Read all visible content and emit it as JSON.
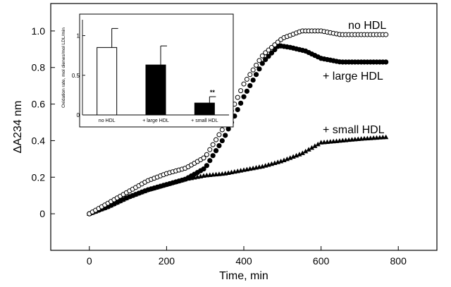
{
  "chart_data": [
    {
      "type": "scatter",
      "xlabel": "Time, min",
      "ylabel": "ΔA234 nm",
      "xlim": [
        -100,
        900
      ],
      "ylim": [
        -0.2,
        1.15
      ],
      "xticks": [
        0,
        200,
        400,
        600,
        800
      ],
      "yticks": [
        0,
        0.2,
        0.4,
        0.6,
        0.8,
        1.0
      ],
      "xtick_labels": [
        "0",
        "200",
        "400",
        "600",
        "800"
      ],
      "ytick_labels": [
        "0",
        "0.2",
        "0.4",
        "0.6",
        "0.8",
        "1.0"
      ],
      "grid": false,
      "series": [
        {
          "name": "no HDL",
          "marker": "open-circle",
          "x": [
            0,
            50,
            100,
            150,
            200,
            250,
            300,
            350,
            400,
            450,
            500,
            550,
            600,
            650,
            700,
            770
          ],
          "y": [
            0,
            0.06,
            0.12,
            0.18,
            0.22,
            0.25,
            0.31,
            0.48,
            0.71,
            0.87,
            0.96,
            1.0,
            1.0,
            0.98,
            0.98,
            0.98
          ]
        },
        {
          "name": "+ large HDL",
          "marker": "filled-circle",
          "x": [
            0,
            50,
            100,
            150,
            200,
            250,
            300,
            350,
            400,
            450,
            490,
            520,
            560,
            600,
            650,
            700,
            770
          ],
          "y": [
            0,
            0.04,
            0.09,
            0.13,
            0.16,
            0.19,
            0.25,
            0.42,
            0.64,
            0.83,
            0.92,
            0.91,
            0.89,
            0.85,
            0.83,
            0.83,
            0.83
          ]
        },
        {
          "name": "+ small HDL",
          "marker": "filled-triangle",
          "x": [
            0,
            50,
            100,
            150,
            200,
            250,
            300,
            350,
            400,
            450,
            500,
            550,
            600,
            650,
            700,
            770
          ],
          "y": [
            0,
            0.04,
            0.09,
            0.13,
            0.16,
            0.19,
            0.21,
            0.22,
            0.24,
            0.26,
            0.29,
            0.33,
            0.39,
            0.4,
            0.41,
            0.42
          ]
        }
      ]
    },
    {
      "type": "bar",
      "ylabel": "Oxidation rate, mol dienes/mol LDL/min",
      "ylim": [
        0,
        1.2
      ],
      "yticks": [
        0,
        0.5,
        1
      ],
      "ytick_labels": [
        "0",
        "0.5",
        "1"
      ],
      "categories": [
        "no HDL",
        "+ large HDL",
        "+ small HDL"
      ],
      "values": [
        0.85,
        0.63,
        0.15
      ],
      "error": [
        0.24,
        0.24,
        0.08
      ],
      "bar_colors": [
        "#ffffff",
        "#000000",
        "#000000"
      ],
      "annotations": [
        {
          "category": "+ small HDL",
          "text": "**"
        }
      ]
    }
  ]
}
